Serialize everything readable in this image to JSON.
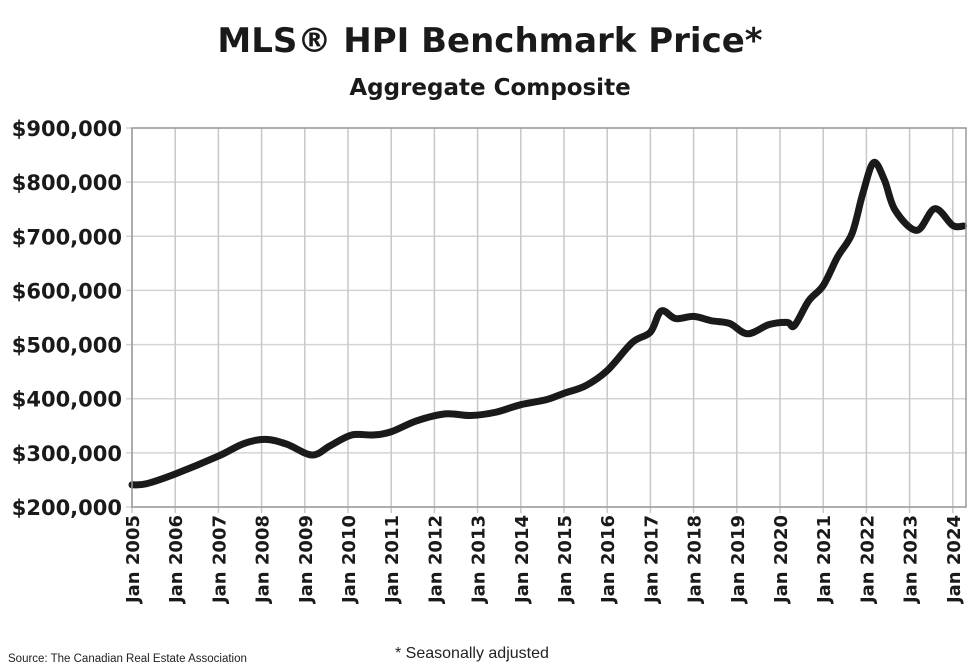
{
  "chart_data": {
    "type": "line",
    "title": "MLS® HPI Benchmark Price*",
    "subtitle": "Aggregate Composite",
    "xlabel": "",
    "ylabel": "",
    "ylim": [
      200000,
      900000
    ],
    "xlim": [
      "Jan 2005",
      "Apr 2024"
    ],
    "grid": true,
    "legend": "none",
    "line_color": "#1a1a1a",
    "y_ticks": [
      "$200,000",
      "$300,000",
      "$400,000",
      "$500,000",
      "$600,000",
      "$700,000",
      "$800,000",
      "$900,000"
    ],
    "x_ticks": [
      "Jan 2005",
      "Jan 2006",
      "Jan 2007",
      "Jan 2008",
      "Jan 2009",
      "Jan 2010",
      "Jan 2011",
      "Jan 2012",
      "Jan 2013",
      "Jan 2014",
      "Jan 2015",
      "Jan 2016",
      "Jan 2017",
      "Jan 2018",
      "Jan 2019",
      "Jan 2020",
      "Jan 2021",
      "Jan 2022",
      "Jan 2023",
      "Jan 2024"
    ],
    "series": [
      {
        "points": [
          [
            "2005-01",
            241000
          ],
          [
            "2005-05",
            243000
          ],
          [
            "2006-01",
            261000
          ],
          [
            "2007-01",
            294000
          ],
          [
            "2007-08",
            317000
          ],
          [
            "2008-02",
            325000
          ],
          [
            "2008-08",
            316000
          ],
          [
            "2009-03",
            296000
          ],
          [
            "2009-08",
            313000
          ],
          [
            "2010-02",
            333000
          ],
          [
            "2010-08",
            333000
          ],
          [
            "2011-01",
            339000
          ],
          [
            "2011-08",
            359000
          ],
          [
            "2012-04",
            372000
          ],
          [
            "2012-11",
            369000
          ],
          [
            "2013-06",
            375000
          ],
          [
            "2014-01",
            389000
          ],
          [
            "2014-08",
            398000
          ],
          [
            "2015-01",
            410000
          ],
          [
            "2015-07",
            424000
          ],
          [
            "2016-01",
            452000
          ],
          [
            "2016-08",
            504000
          ],
          [
            "2017-01",
            523000
          ],
          [
            "2017-04",
            562000
          ],
          [
            "2017-08",
            548000
          ],
          [
            "2018-01",
            552000
          ],
          [
            "2018-06",
            544000
          ],
          [
            "2018-11",
            539000
          ],
          [
            "2019-04",
            520000
          ],
          [
            "2019-10",
            537000
          ],
          [
            "2020-03",
            541000
          ],
          [
            "2020-05",
            535000
          ],
          [
            "2020-09",
            581000
          ],
          [
            "2021-01",
            609000
          ],
          [
            "2021-05",
            662000
          ],
          [
            "2021-09",
            705000
          ],
          [
            "2021-12",
            779000
          ],
          [
            "2022-03",
            836000
          ],
          [
            "2022-06",
            804000
          ],
          [
            "2022-09",
            748000
          ],
          [
            "2023-03",
            711000
          ],
          [
            "2023-08",
            751000
          ],
          [
            "2024-01",
            720000
          ],
          [
            "2024-04",
            719000
          ]
        ]
      }
    ]
  },
  "footer": {
    "source": "Source: The Canadian Real Estate Association",
    "note": "* Seasonally adjusted"
  }
}
